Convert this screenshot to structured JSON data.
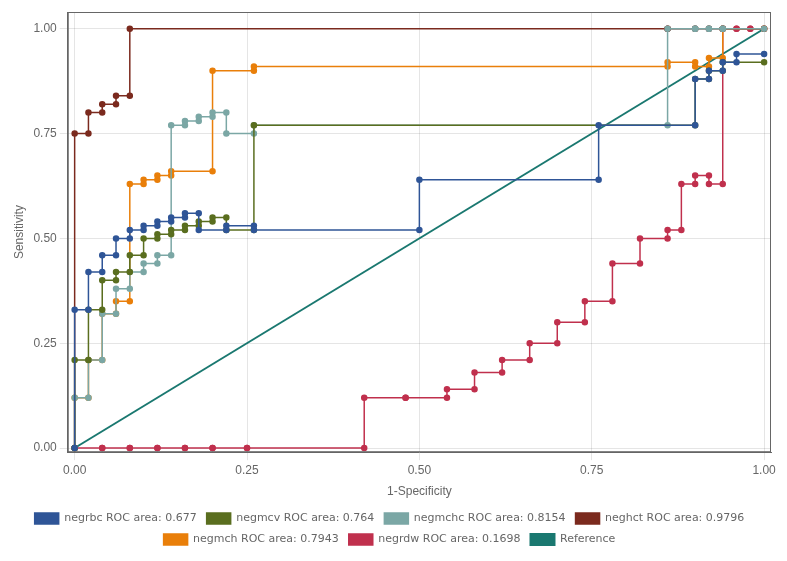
{
  "chart_data": {
    "type": "line",
    "x_label": "1-Specificity",
    "y_label": "Sensitivity",
    "xlim": [
      -0.01,
      1.01
    ],
    "ylim": [
      -0.01,
      1.04
    ],
    "xticks": [
      {
        "value": 0.0,
        "label": "0.00"
      },
      {
        "value": 0.25,
        "label": "0.25"
      },
      {
        "value": 0.5,
        "label": "0.50"
      },
      {
        "value": 0.75,
        "label": "0.75"
      },
      {
        "value": 1.0,
        "label": "1.00"
      }
    ],
    "yticks": [
      {
        "value": 0.0,
        "label": "0.00"
      },
      {
        "value": 0.25,
        "label": "0.25"
      },
      {
        "value": 0.5,
        "label": "0.50"
      },
      {
        "value": 0.75,
        "label": "0.75"
      },
      {
        "value": 1.0,
        "label": "1.00"
      }
    ],
    "grid": true,
    "legend": "bottom",
    "series": [
      {
        "name": "negrbc ROC area: 0.677",
        "color": "#2f5597",
        "marker": "circle",
        "x": [
          0,
          0,
          0.02,
          0.02,
          0.04,
          0.04,
          0.06,
          0.06,
          0.08,
          0.08,
          0.1,
          0.1,
          0.12,
          0.12,
          0.14,
          0.14,
          0.16,
          0.16,
          0.18,
          0.18,
          0.22,
          0.22,
          0.26,
          0.26,
          0.5,
          0.5,
          0.76,
          0.76,
          0.9,
          0.9,
          0.92,
          0.92,
          0.94,
          0.94,
          0.96,
          0.96,
          1.0
        ],
        "values": [
          0,
          0.33,
          0.33,
          0.42,
          0.42,
          0.46,
          0.46,
          0.5,
          0.5,
          0.52,
          0.52,
          0.53,
          0.53,
          0.54,
          0.54,
          0.55,
          0.55,
          0.56,
          0.56,
          0.52,
          0.52,
          0.53,
          0.53,
          0.52,
          0.52,
          0.64,
          0.64,
          0.77,
          0.77,
          0.88,
          0.88,
          0.9,
          0.9,
          0.92,
          0.92,
          0.94,
          0.94
        ]
      },
      {
        "name": "negmcv ROC area: 0.764",
        "color": "#5a6e1f",
        "marker": "circle",
        "x": [
          0,
          0,
          0.02,
          0.02,
          0.04,
          0.04,
          0.06,
          0.06,
          0.08,
          0.08,
          0.1,
          0.1,
          0.12,
          0.12,
          0.14,
          0.14,
          0.16,
          0.16,
          0.18,
          0.18,
          0.2,
          0.2,
          0.22,
          0.22,
          0.26,
          0.26,
          0.9,
          0.9,
          0.92,
          0.92,
          0.94,
          0.94,
          1.0
        ],
        "values": [
          0,
          0.21,
          0.21,
          0.33,
          0.33,
          0.4,
          0.4,
          0.42,
          0.42,
          0.46,
          0.46,
          0.5,
          0.5,
          0.51,
          0.51,
          0.52,
          0.52,
          0.53,
          0.53,
          0.54,
          0.54,
          0.55,
          0.55,
          0.52,
          0.52,
          0.77,
          0.77,
          0.88,
          0.88,
          0.9,
          0.9,
          0.92,
          0.92
        ]
      },
      {
        "name": "negmchc ROC area: 0.8154",
        "color": "#7ba7a5",
        "marker": "circle",
        "x": [
          0,
          0,
          0.02,
          0.02,
          0.04,
          0.04,
          0.06,
          0.06,
          0.08,
          0.08,
          0.1,
          0.1,
          0.12,
          0.12,
          0.14,
          0.14,
          0.16,
          0.16,
          0.18,
          0.18,
          0.2,
          0.2,
          0.22,
          0.22,
          0.26,
          0.26,
          0.86,
          0.86,
          0.9,
          0.9,
          0.92,
          0.92,
          0.94,
          0.94,
          1.0
        ],
        "values": [
          0,
          0.12,
          0.12,
          0.21,
          0.21,
          0.32,
          0.32,
          0.38,
          0.38,
          0.42,
          0.42,
          0.44,
          0.44,
          0.46,
          0.46,
          0.77,
          0.77,
          0.78,
          0.78,
          0.79,
          0.79,
          0.8,
          0.8,
          0.75,
          0.75,
          0.77,
          0.77,
          1.0,
          1.0,
          1.0,
          1.0,
          1.0,
          1.0,
          1.0,
          1.0
        ]
      },
      {
        "name": "neghct ROC area: 0.9796",
        "color": "#7b2a1e",
        "marker": "circle",
        "x": [
          0,
          0,
          0.02,
          0.02,
          0.04,
          0.04,
          0.06,
          0.06,
          0.08,
          0.08,
          0.86,
          0.86,
          0.9,
          0.9,
          0.92,
          0.92,
          0.94,
          0.94,
          1.0
        ],
        "values": [
          0,
          0.75,
          0.75,
          0.8,
          0.8,
          0.82,
          0.82,
          0.84,
          0.84,
          1.0,
          1.0,
          1.0,
          1.0,
          1.0,
          1.0,
          1.0,
          1.0,
          1.0,
          1.0
        ]
      },
      {
        "name": "negmch ROC area: 0.7943",
        "color": "#e97f0a",
        "marker": "circle",
        "x": [
          0,
          0,
          0.02,
          0.02,
          0.04,
          0.04,
          0.06,
          0.06,
          0.08,
          0.08,
          0.1,
          0.1,
          0.12,
          0.12,
          0.14,
          0.14,
          0.2,
          0.2,
          0.26,
          0.26,
          0.86,
          0.86,
          0.9,
          0.9,
          0.92,
          0.92,
          0.94,
          0.94,
          1.0
        ],
        "values": [
          0,
          0.12,
          0.12,
          0.21,
          0.21,
          0.32,
          0.32,
          0.35,
          0.35,
          0.63,
          0.63,
          0.64,
          0.64,
          0.65,
          0.65,
          0.66,
          0.66,
          0.9,
          0.9,
          0.91,
          0.91,
          0.92,
          0.92,
          0.91,
          0.91,
          0.93,
          0.93,
          1.0,
          1.0
        ]
      },
      {
        "name": "negrdw ROC area: 0.1698",
        "color": "#c0304d",
        "marker": "circle",
        "x": [
          0,
          0,
          0.04,
          0.04,
          0.08,
          0.08,
          0.12,
          0.12,
          0.16,
          0.16,
          0.2,
          0.2,
          0.25,
          0.25,
          0.42,
          0.42,
          0.48,
          0.48,
          0.54,
          0.54,
          0.58,
          0.58,
          0.62,
          0.62,
          0.66,
          0.66,
          0.7,
          0.7,
          0.74,
          0.74,
          0.78,
          0.78,
          0.82,
          0.82,
          0.86,
          0.86,
          0.88,
          0.88,
          0.9,
          0.9,
          0.92,
          0.92,
          0.94,
          0.94,
          0.96,
          0.96,
          0.98,
          0.98,
          1.0
        ],
        "values": [
          0,
          0,
          0,
          0,
          0,
          0,
          0,
          0,
          0,
          0,
          0,
          0,
          0,
          0,
          0,
          0.12,
          0.12,
          0.12,
          0.12,
          0.14,
          0.14,
          0.18,
          0.18,
          0.21,
          0.21,
          0.25,
          0.25,
          0.3,
          0.3,
          0.35,
          0.35,
          0.44,
          0.44,
          0.5,
          0.5,
          0.52,
          0.52,
          0.63,
          0.63,
          0.65,
          0.65,
          0.63,
          0.63,
          1.0,
          1.0,
          1.0,
          1.0,
          1.0,
          1.0
        ]
      },
      {
        "name": "Reference",
        "color": "#1a7870",
        "marker": "none",
        "x": [
          0,
          1
        ],
        "values": [
          0,
          1
        ]
      }
    ]
  }
}
